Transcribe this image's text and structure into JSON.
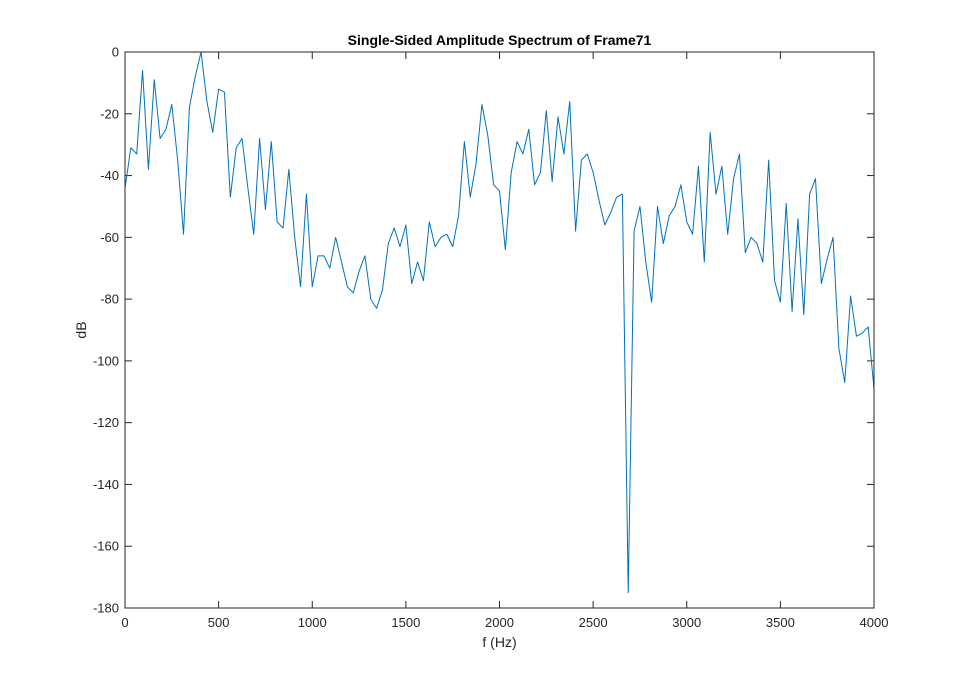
{
  "chart_data": {
    "type": "line",
    "title": "Single-Sided Amplitude Spectrum of Frame71",
    "xlabel": "f (Hz)",
    "ylabel": "dB",
    "xlim": [
      0,
      4000
    ],
    "ylim": [
      -180,
      0
    ],
    "xticks": [
      0,
      500,
      1000,
      1500,
      2000,
      2500,
      3000,
      3500,
      4000
    ],
    "xtick_labels": [
      "0",
      "500",
      "1000",
      "1500",
      "2000",
      "2500",
      "3000",
      "3500",
      "4000"
    ],
    "yticks": [
      0,
      -20,
      -40,
      -60,
      -80,
      -100,
      -120,
      -140,
      -160,
      -180
    ],
    "ytick_labels": [
      "0",
      "-20",
      "-40",
      "-60",
      "-80",
      "-100",
      "-120",
      "-140",
      "-160",
      "-180"
    ],
    "grid": false,
    "line_color": "#0072BD",
    "series": [
      {
        "x": [
          0,
          31.25,
          62.5,
          93.75,
          125,
          156.25,
          187.5,
          218.75,
          250,
          281.25,
          312.5,
          343.75,
          375,
          406.25,
          437.5,
          468.75,
          500,
          531.25,
          562.5,
          593.75,
          625,
          656.25,
          687.5,
          718.75,
          750,
          781.25,
          812.5,
          843.75,
          875,
          906.25,
          937.5,
          968.75,
          1000,
          1031.25,
          1062.5,
          1093.75,
          1125,
          1156.25,
          1187.5,
          1218.75,
          1250,
          1281.25,
          1312.5,
          1343.75,
          1375,
          1406.25,
          1437.5,
          1468.75,
          1500,
          1531.25,
          1562.5,
          1593.75,
          1625,
          1656.25,
          1687.5,
          1718.75,
          1750,
          1781.25,
          1812.5,
          1843.75,
          1875,
          1906.25,
          1937.5,
          1968.75,
          2000,
          2031.25,
          2062.5,
          2093.75,
          2125,
          2156.25,
          2187.5,
          2218.75,
          2250,
          2281.25,
          2312.5,
          2343.75,
          2375,
          2406.25,
          2437.5,
          2468.75,
          2500,
          2531.25,
          2562.5,
          2593.75,
          2625,
          2656.25,
          2687.5,
          2718.75,
          2750,
          2781.25,
          2812.5,
          2843.75,
          2875,
          2906.25,
          2937.5,
          2968.75,
          3000,
          3031.25,
          3062.5,
          3093.75,
          3125,
          3156.25,
          3187.5,
          3218.75,
          3250,
          3281.25,
          3312.5,
          3343.75,
          3375,
          3406.25,
          3437.5,
          3468.75,
          3500,
          3531.25,
          3562.5,
          3593.75,
          3625,
          3656.25,
          3687.5,
          3718.75,
          3750,
          3781.25,
          3812.5,
          3843.75,
          3875,
          3906.25,
          3937.5,
          3968.75,
          4000
        ],
        "values": [
          -44,
          -31,
          -33,
          -6,
          -38,
          -9,
          -28,
          -25,
          -17,
          -35,
          -59,
          -18,
          -8,
          0,
          -16,
          -26,
          -12,
          -13,
          -47,
          -31,
          -28,
          -44,
          -59,
          -28,
          -51,
          -29,
          -55,
          -57,
          -38,
          -60,
          -76,
          -46,
          -76,
          -66,
          -66,
          -70,
          -60,
          -68,
          -76,
          -78,
          -71,
          -66,
          -80,
          -83,
          -77,
          -62,
          -57,
          -63,
          -56,
          -75,
          -68,
          -74,
          -55,
          -63,
          -60,
          -59,
          -63,
          -53,
          -29,
          -47,
          -36,
          -17,
          -27,
          -43,
          -45,
          -64,
          -39,
          -29,
          -33,
          -25,
          -43,
          -39,
          -19,
          -42,
          -21,
          -33,
          -16,
          -58,
          -35,
          -33,
          -39,
          -48,
          -56,
          -52,
          -47,
          -46,
          -175,
          -58,
          -50,
          -68,
          -81,
          -50,
          -62,
          -53,
          -50,
          -43,
          -55,
          -59,
          -37,
          -68,
          -26,
          -46,
          -37,
          -59,
          -41,
          -33,
          -65,
          -60,
          -62,
          -68,
          -35,
          -74,
          -81,
          -49,
          -84,
          -54,
          -85,
          -46,
          -41,
          -75,
          -67,
          -60,
          -96,
          -107,
          -79,
          -92,
          -91,
          -89,
          -109
        ]
      }
    ]
  }
}
